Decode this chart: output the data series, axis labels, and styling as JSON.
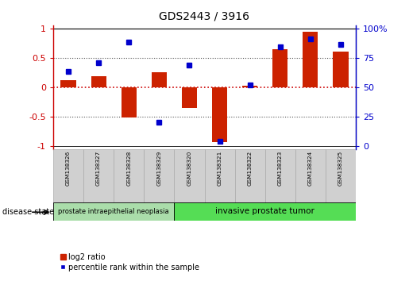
{
  "title": "GDS2443 / 3916",
  "samples": [
    "GSM138326",
    "GSM138327",
    "GSM138328",
    "GSM138329",
    "GSM138320",
    "GSM138321",
    "GSM138322",
    "GSM138323",
    "GSM138324",
    "GSM138325"
  ],
  "log2_ratio": [
    0.12,
    0.18,
    -0.52,
    0.25,
    -0.35,
    -0.93,
    0.02,
    0.65,
    0.94,
    0.6
  ],
  "percentile_raw": [
    63,
    71,
    88,
    20,
    69,
    4,
    52,
    84,
    91,
    86
  ],
  "bar_color": "#cc2200",
  "dot_color": "#0000cc",
  "yticks_left": [
    -1,
    -0.5,
    0,
    0.5,
    1
  ],
  "yticks_right": [
    0,
    25,
    50,
    75,
    100
  ],
  "ylim": [
    -1.05,
    1.05
  ],
  "group1_indices": [
    0,
    1,
    2,
    3
  ],
  "group2_indices": [
    4,
    5,
    6,
    7,
    8,
    9
  ],
  "group1_label": "prostate intraepithelial neoplasia",
  "group2_label": "invasive prostate tumor",
  "group1_color": "#aaddaa",
  "group2_color": "#55dd55",
  "disease_state_label": "disease state",
  "legend_bar_label": "log2 ratio",
  "legend_dot_label": "percentile rank within the sample",
  "bar_color_red": "#cc2200",
  "dot_color_blue": "#0000cc",
  "hline_color": "#cc0000",
  "grid_color": "#555555",
  "sample_box_color": "#d0d0d0",
  "sample_box_edge": "#aaaaaa"
}
